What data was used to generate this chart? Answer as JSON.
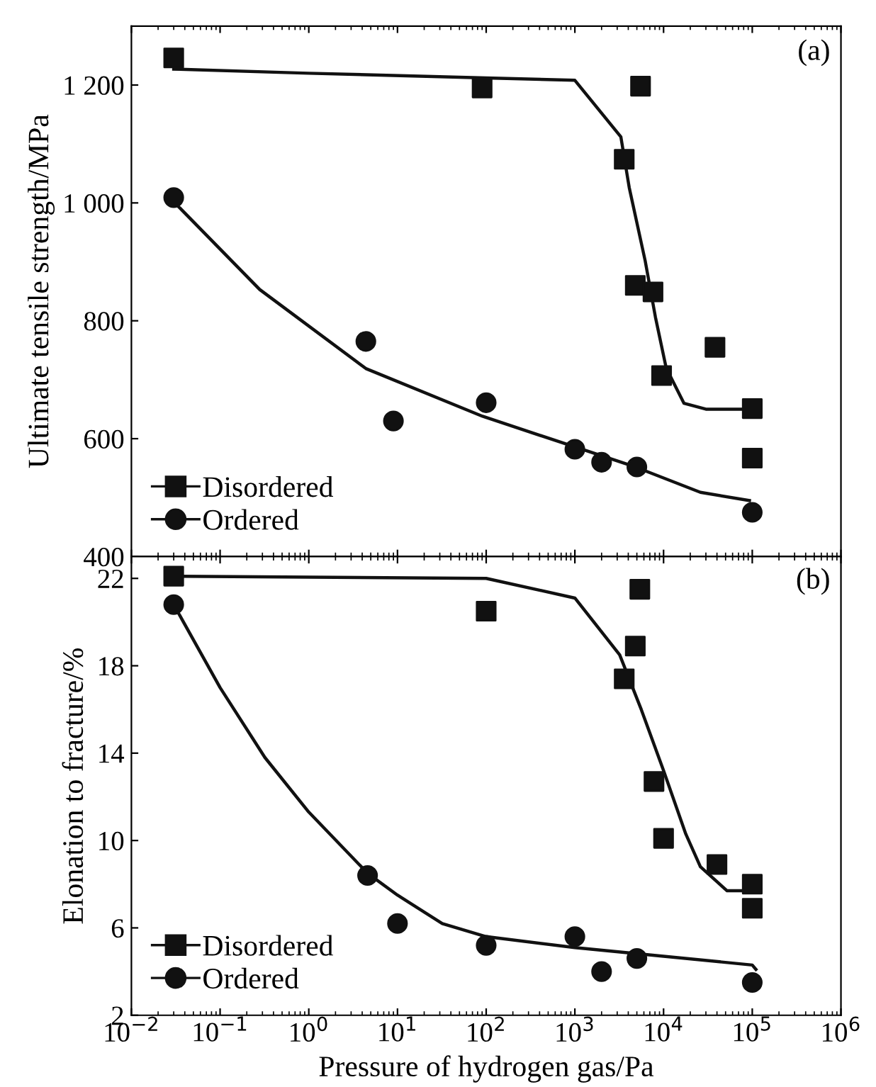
{
  "chart_data": [
    {
      "type": "scatter",
      "ylabel": "Ultimate tensile strength/MPa",
      "annotations": [
        "(a)"
      ],
      "log": "x",
      "xlim": [
        0.01,
        1000000
      ],
      "ylim": [
        400,
        1300
      ],
      "yticks": [
        400,
        600,
        800,
        {
          "value": 1000,
          "label": "1 000"
        },
        {
          "value": 1200,
          "label": "1 200"
        }
      ],
      "tick_labels": "y",
      "legend": "bottom left",
      "grid": false,
      "series": [
        {
          "name": "Disordered",
          "marker": "square",
          "color": "#111111",
          "x": [
            0.03,
            90,
            5500,
            3600,
            4800,
            7600,
            9500,
            38000,
            100000,
            100000
          ],
          "values": [
            1246,
            1195,
            1198,
            1074,
            860,
            849,
            707,
            755,
            651,
            567
          ]
        },
        {
          "name": "Ordered",
          "marker": "circle",
          "color": "#111111",
          "x": [
            0.03,
            4.4,
            9,
            100,
            1000,
            2000,
            5000,
            100000
          ],
          "values": [
            1009,
            765,
            630,
            661,
            582,
            560,
            552,
            475
          ]
        },
        {
          "type": "line",
          "marker": "none",
          "color": "#111111",
          "x": [
            0.03,
            1,
            100,
            1000,
            3300,
            4100,
            6200,
            8100,
            10700,
            17000,
            30000,
            100000
          ],
          "values": [
            1227,
            1220,
            1212,
            1208,
            1112,
            1026,
            902,
            806,
            720,
            660,
            650,
            650
          ]
        },
        {
          "type": "line",
          "marker": "none",
          "color": "#111111",
          "x": [
            0.03,
            0.28,
            4.4,
            91,
            1000,
            4800,
            26000,
            93000
          ],
          "values": [
            1002,
            853,
            719,
            638,
            586,
            552,
            509,
            495
          ]
        }
      ]
    },
    {
      "type": "scatter",
      "ylabel": "Elonation to fracture/%",
      "xlabel": "Pressure of hydrogen gas/Pa",
      "annotations": [
        "(b)"
      ],
      "log": "x",
      "xlim": [
        0.01,
        1000000
      ],
      "ylim": [
        2,
        23
      ],
      "yticks": [
        2,
        6,
        10,
        14,
        18,
        22
      ],
      "xticks": [
        {
          "value": 0.01,
          "label": "10$^{−2}$"
        },
        {
          "value": 0.1,
          "label": "10$^{−1}$"
        },
        {
          "value": 1,
          "label": "10$^{0}$"
        },
        {
          "value": 10,
          "label": "10$^{1}$"
        },
        {
          "value": 100,
          "label": "10$^{2}$"
        },
        {
          "value": 1000,
          "label": "10$^{3}$"
        },
        {
          "value": 10000,
          "label": "10$^{4}$"
        },
        {
          "value": 100000,
          "label": "10$^{5}$"
        },
        {
          "value": 1000000,
          "label": "10$^{6}$"
        }
      ],
      "legend": "bottom left",
      "grid": false,
      "series": [
        {
          "name": "Disordered",
          "marker": "square",
          "color": "#111111",
          "x": [
            0.03,
            100,
            5400,
            4800,
            3600,
            7800,
            10000,
            40000,
            100000,
            100000
          ],
          "values": [
            22.1,
            20.5,
            21.5,
            18.9,
            17.4,
            12.7,
            10.1,
            8.9,
            8.0,
            6.9
          ]
        },
        {
          "name": "Ordered",
          "marker": "circle",
          "color": "#111111",
          "x": [
            0.03,
            4.6,
            10,
            100,
            1000,
            2000,
            5000,
            100000
          ],
          "values": [
            20.8,
            8.4,
            6.2,
            5.2,
            5.6,
            4.0,
            4.6,
            3.5
          ]
        },
        {
          "type": "line",
          "marker": "none",
          "color": "#111111",
          "x": [
            0.03,
            100,
            1000,
            3200,
            5600,
            10000,
            17800,
            26000,
            52000,
            100000
          ],
          "values": [
            22.1,
            22.0,
            21.1,
            18.5,
            16.0,
            13.2,
            10.3,
            8.8,
            7.7,
            7.7
          ]
        },
        {
          "type": "line",
          "marker": "none",
          "color": "#111111",
          "x": [
            0.03,
            0.1,
            0.32,
            1,
            4.6,
            10,
            32,
            100,
            1000,
            10000,
            100000,
            110000
          ],
          "values": [
            20.8,
            17.0,
            13.8,
            11.3,
            8.5,
            7.5,
            6.2,
            5.6,
            5.1,
            4.7,
            4.3,
            4.1
          ]
        }
      ]
    }
  ]
}
